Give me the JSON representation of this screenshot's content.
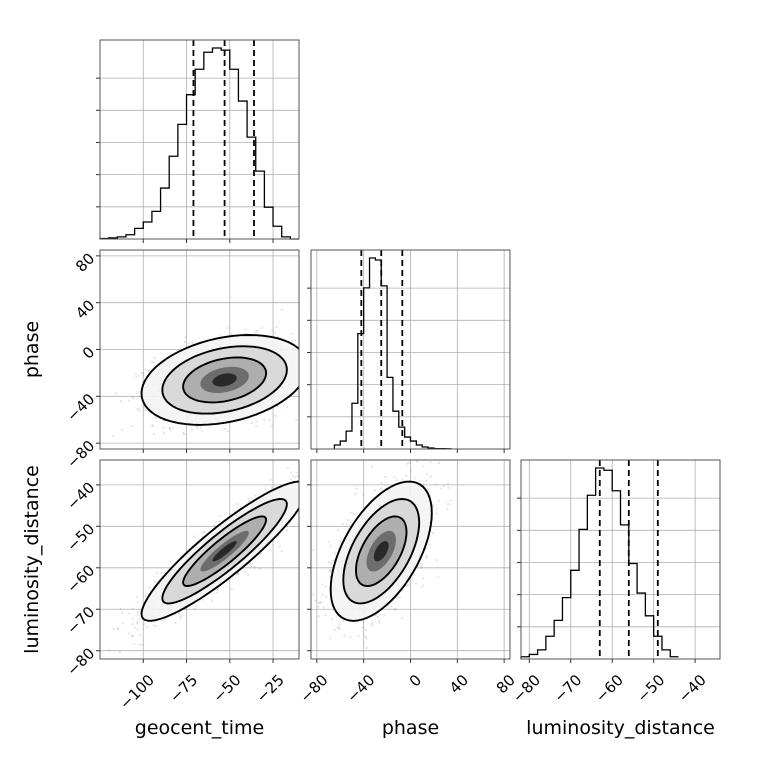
{
  "chart_data": {
    "type": "corner",
    "parameters": [
      "geocent_time",
      "phase",
      "luminosity_distance"
    ],
    "ranges": {
      "geocent_time": [
        -125,
        -10
      ],
      "phase": [
        -85,
        85
      ],
      "luminosity_distance": [
        -82,
        -34
      ]
    },
    "ticks": {
      "geocent_time": [
        -100,
        -75,
        -50,
        -25
      ],
      "phase": [
        -80,
        -40,
        0,
        40,
        80
      ],
      "luminosity_distance": [
        -80,
        -70,
        -60,
        -50,
        -40
      ]
    },
    "tick_labels": {
      "geocent_time": [
        "−100",
        "−75",
        "−50",
        "−25"
      ],
      "phase": [
        "−80",
        "−40",
        "0",
        "40",
        "80"
      ],
      "luminosity_distance": [
        "−80",
        "−70",
        "−60",
        "−50",
        "−40"
      ]
    },
    "quantiles": {
      "geocent_time": [
        -71,
        -53,
        -36
      ],
      "phase": [
        -42,
        -25,
        -7
      ],
      "luminosity_distance": [
        -63,
        -56,
        -49
      ]
    },
    "histograms": {
      "geocent_time": {
        "bin_start": -125,
        "bin_width": 5,
        "counts": [
          0.2,
          0.5,
          1,
          2,
          5,
          8,
          13,
          24,
          39,
          54,
          68,
          80,
          88,
          90,
          89,
          80,
          65,
          48,
          32,
          15,
          6,
          1,
          0
        ]
      },
      "phase": {
        "bin_start": -65,
        "bin_width": 5,
        "counts": [
          2,
          4,
          9,
          23,
          58,
          81,
          96,
          95,
          82,
          36,
          19,
          11,
          6,
          4,
          2,
          1,
          0.5,
          0.2,
          0.2,
          0.1
        ]
      },
      "luminosity_distance": {
        "bin_start": -82,
        "bin_width": 2,
        "counts": [
          1,
          2,
          4,
          10,
          17,
          27,
          39,
          57,
          72,
          84,
          83,
          74,
          59,
          42,
          29,
          19,
          10,
          4,
          1
        ]
      }
    },
    "pairs": [
      {
        "x": "geocent_time",
        "y": "phase",
        "mean": [
          -53,
          -26
        ],
        "sd": [
          20,
          16
        ],
        "corr": 0.3
      },
      {
        "x": "geocent_time",
        "y": "luminosity_distance",
        "mean": [
          -53,
          -56
        ],
        "sd": [
          20,
          7
        ],
        "corr": 0.9
      },
      {
        "x": "phase",
        "y": "luminosity_distance",
        "mean": [
          -25,
          -56
        ],
        "sd": [
          18,
          7
        ],
        "corr": 0.55
      }
    ],
    "grid": true
  }
}
